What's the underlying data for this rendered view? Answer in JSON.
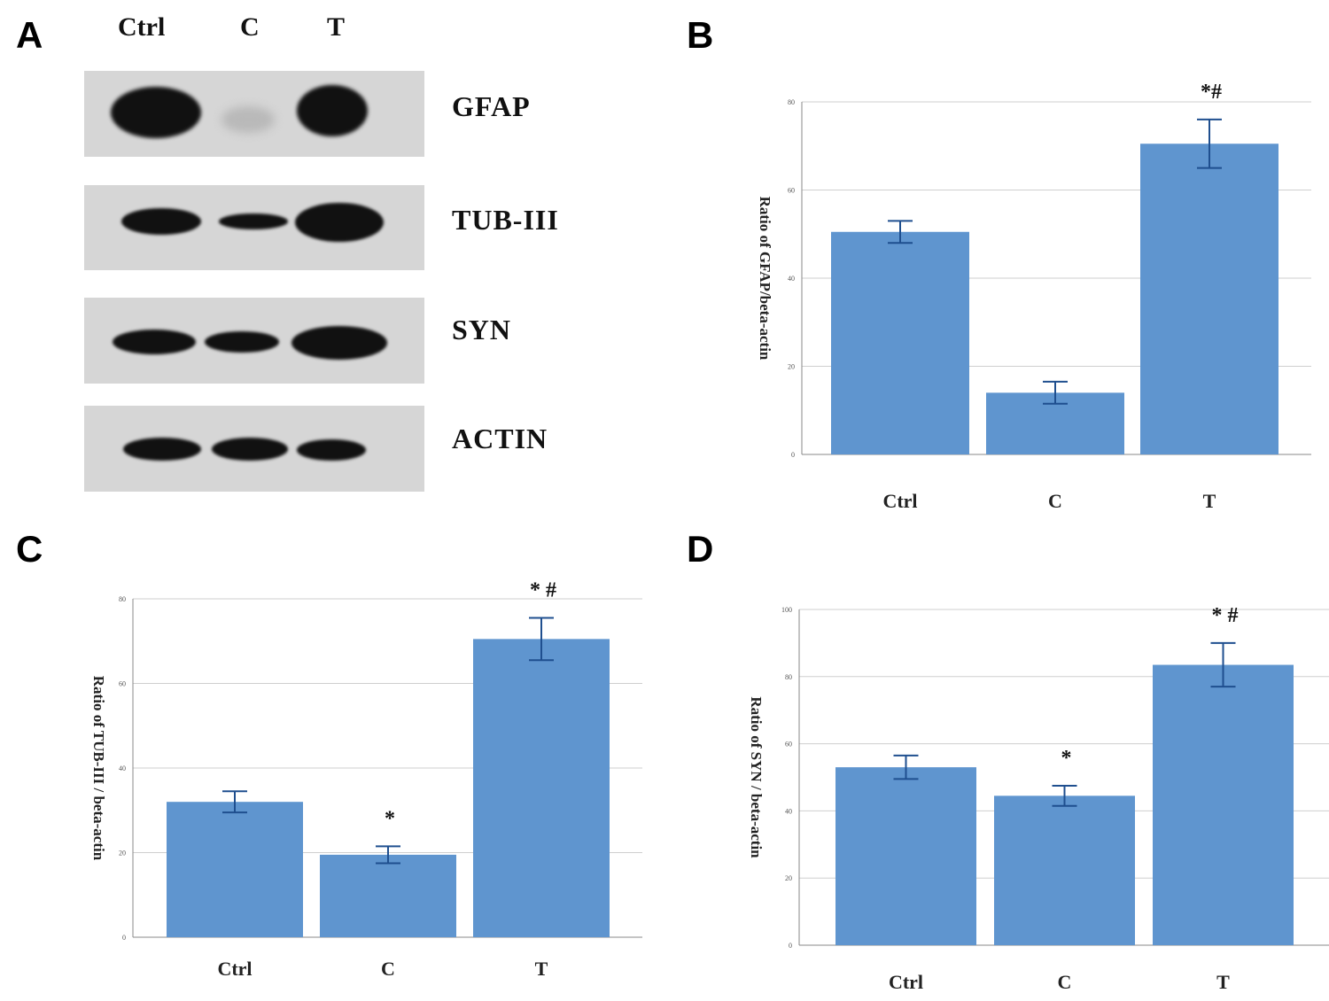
{
  "panels": {
    "a": "A",
    "b": "B",
    "c": "C",
    "d": "D"
  },
  "western_blot": {
    "lanes": [
      "Ctrl",
      "C",
      "T"
    ],
    "proteins": [
      "GFAP",
      "TUB-III",
      "SYN",
      "ACTIN"
    ]
  },
  "colors": {
    "bar": "#5f95cf",
    "error": "#1f4f8f",
    "grid": "#cfcfcf"
  },
  "chart_data": [
    {
      "id": "B",
      "type": "bar",
      "categories": [
        "Ctrl",
        "C",
        "T"
      ],
      "values": [
        50.5,
        14,
        70.5
      ],
      "errors": [
        2.5,
        2.5,
        5.5
      ],
      "annotations": [
        "",
        "",
        "*#"
      ],
      "ylabel": "Ratio of GFAP/beta-actin",
      "ylim": [
        0,
        80
      ],
      "yticks": [
        0,
        20,
        40,
        60,
        80
      ],
      "grid": true
    },
    {
      "id": "C",
      "type": "bar",
      "categories": [
        "Ctrl",
        "C",
        "T"
      ],
      "values": [
        32,
        19.5,
        70.5
      ],
      "errors": [
        2.5,
        2,
        5
      ],
      "annotations": [
        "",
        "*",
        "* #"
      ],
      "ylabel": "Ratio of TUB-III / beta-actin",
      "ylim": [
        0,
        80
      ],
      "yticks": [
        0,
        20,
        40,
        60,
        80
      ],
      "grid": true
    },
    {
      "id": "D",
      "type": "bar",
      "categories": [
        "Ctrl",
        "C",
        "T"
      ],
      "values": [
        53,
        44.5,
        83.5
      ],
      "errors": [
        3.5,
        3,
        6.5
      ],
      "annotations": [
        "",
        "*",
        "* #"
      ],
      "ylabel": "Ratio of SYN / beta-actin",
      "ylim": [
        0,
        100
      ],
      "yticks": [
        0,
        20,
        40,
        60,
        80,
        100
      ],
      "grid": true
    }
  ]
}
